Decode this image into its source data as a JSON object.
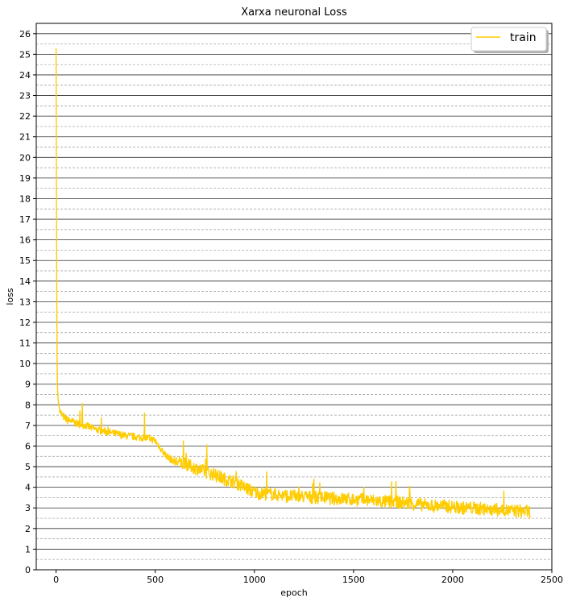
{
  "chart_data": {
    "type": "line",
    "title": "Xarxa neuronal Loss",
    "xlabel": "epoch",
    "ylabel": "loss",
    "xlim": [
      -100,
      2500
    ],
    "ylim": [
      0,
      26.5
    ],
    "xticks": [
      0,
      500,
      1000,
      1500,
      2000,
      2500
    ],
    "yticks": [
      0,
      1,
      2,
      3,
      4,
      5,
      6,
      7,
      8,
      9,
      10,
      11,
      12,
      13,
      14,
      15,
      16,
      17,
      18,
      19,
      20,
      21,
      22,
      23,
      24,
      25,
      26
    ],
    "grid": {
      "major": "solid",
      "minor": "dashed",
      "axis": "y"
    },
    "legend": {
      "position": "top-right",
      "entries": [
        "train"
      ]
    },
    "series": [
      {
        "name": "train",
        "color": "#FFCC00",
        "x": [
          0,
          2,
          4,
          6,
          8,
          10,
          12,
          15,
          20,
          25,
          30,
          40,
          50,
          60,
          80,
          100,
          150,
          200,
          250,
          300,
          350,
          400,
          450,
          480,
          500,
          520,
          540,
          560,
          580,
          600,
          650,
          700,
          750,
          800,
          850,
          900,
          950,
          1000,
          1050,
          1100,
          1150,
          1200,
          1250,
          1300,
          1350,
          1400,
          1450,
          1500,
          1550,
          1600,
          1650,
          1700,
          1750,
          1800,
          1850,
          1900,
          1950,
          2000,
          2050,
          2100,
          2150,
          2200,
          2250,
          2300,
          2350,
          2390
        ],
        "y": [
          25.3,
          18.0,
          12.0,
          9.5,
          8.6,
          8.3,
          8.1,
          7.9,
          7.7,
          7.6,
          7.5,
          7.4,
          7.3,
          7.25,
          7.2,
          7.1,
          7.0,
          6.8,
          6.7,
          6.6,
          6.5,
          6.45,
          6.4,
          6.35,
          6.25,
          6.0,
          5.7,
          5.5,
          5.35,
          5.25,
          5.1,
          4.95,
          4.75,
          4.6,
          4.4,
          4.25,
          4.0,
          3.75,
          3.7,
          3.65,
          3.6,
          3.55,
          3.55,
          3.5,
          3.5,
          3.45,
          3.45,
          3.4,
          3.4,
          3.35,
          3.3,
          3.3,
          3.25,
          3.2,
          3.15,
          3.1,
          3.1,
          3.05,
          3.0,
          3.0,
          2.95,
          2.9,
          2.9,
          2.85,
          2.85,
          2.8
        ]
      }
    ]
  }
}
